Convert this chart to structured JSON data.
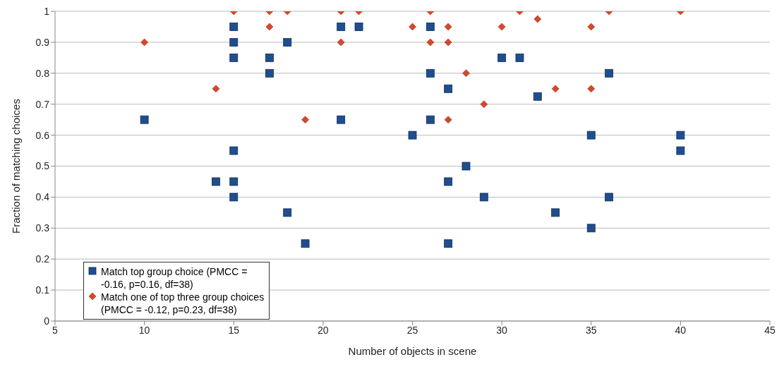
{
  "chart_data": {
    "type": "scatter",
    "xlabel": "Number of objects in scene",
    "ylabel": "Fraction of matching choices",
    "xlim": [
      5,
      45
    ],
    "xticks": [
      5,
      10,
      15,
      20,
      25,
      30,
      35,
      40,
      45
    ],
    "ylim": [
      0,
      1
    ],
    "yticks": [
      0,
      0.1,
      0.2,
      0.3,
      0.4,
      0.5,
      0.6,
      0.7,
      0.8,
      0.9,
      1
    ],
    "grid": "y",
    "legend": "bottom left",
    "series": [
      {
        "name": "Match top group choice (PMCC = -0.16, p=0.16, df=38)",
        "color": "#1f4e8f",
        "marker": "square",
        "x": [
          10,
          14,
          15,
          15,
          15,
          15,
          15,
          15,
          17,
          17,
          18,
          18,
          19,
          21,
          21,
          22,
          25,
          26,
          26,
          26,
          27,
          27,
          27,
          28,
          29,
          30,
          31,
          32,
          33,
          35,
          35,
          36,
          36,
          40,
          40
        ],
        "values": [
          0.65,
          0.45,
          0.95,
          0.9,
          0.85,
          0.55,
          0.45,
          0.4,
          0.85,
          0.8,
          0.9,
          0.35,
          0.25,
          0.95,
          0.65,
          0.95,
          0.6,
          0.95,
          0.8,
          0.65,
          0.75,
          0.45,
          0.25,
          0.5,
          0.4,
          0.85,
          0.85,
          0.725,
          0.35,
          0.6,
          0.3,
          0.8,
          0.4,
          0.6,
          0.55
        ]
      },
      {
        "name": "Match one of top three group choices (PMCC = -0.12, p=0.23, df=38)",
        "color": "#d9472b",
        "marker": "diamond",
        "x": [
          10,
          14,
          15,
          17,
          17,
          18,
          19,
          21,
          21,
          22,
          25,
          26,
          26,
          27,
          27,
          27,
          28,
          29,
          30,
          31,
          32,
          33,
          35,
          35,
          36,
          40
        ],
        "values": [
          0.9,
          0.75,
          1,
          1,
          0.95,
          1,
          0.65,
          1,
          0.9,
          1,
          0.95,
          1,
          0.9,
          0.95,
          0.9,
          0.65,
          0.8,
          0.7,
          0.95,
          1,
          0.975,
          0.75,
          0.95,
          0.75,
          1,
          1
        ]
      }
    ]
  }
}
